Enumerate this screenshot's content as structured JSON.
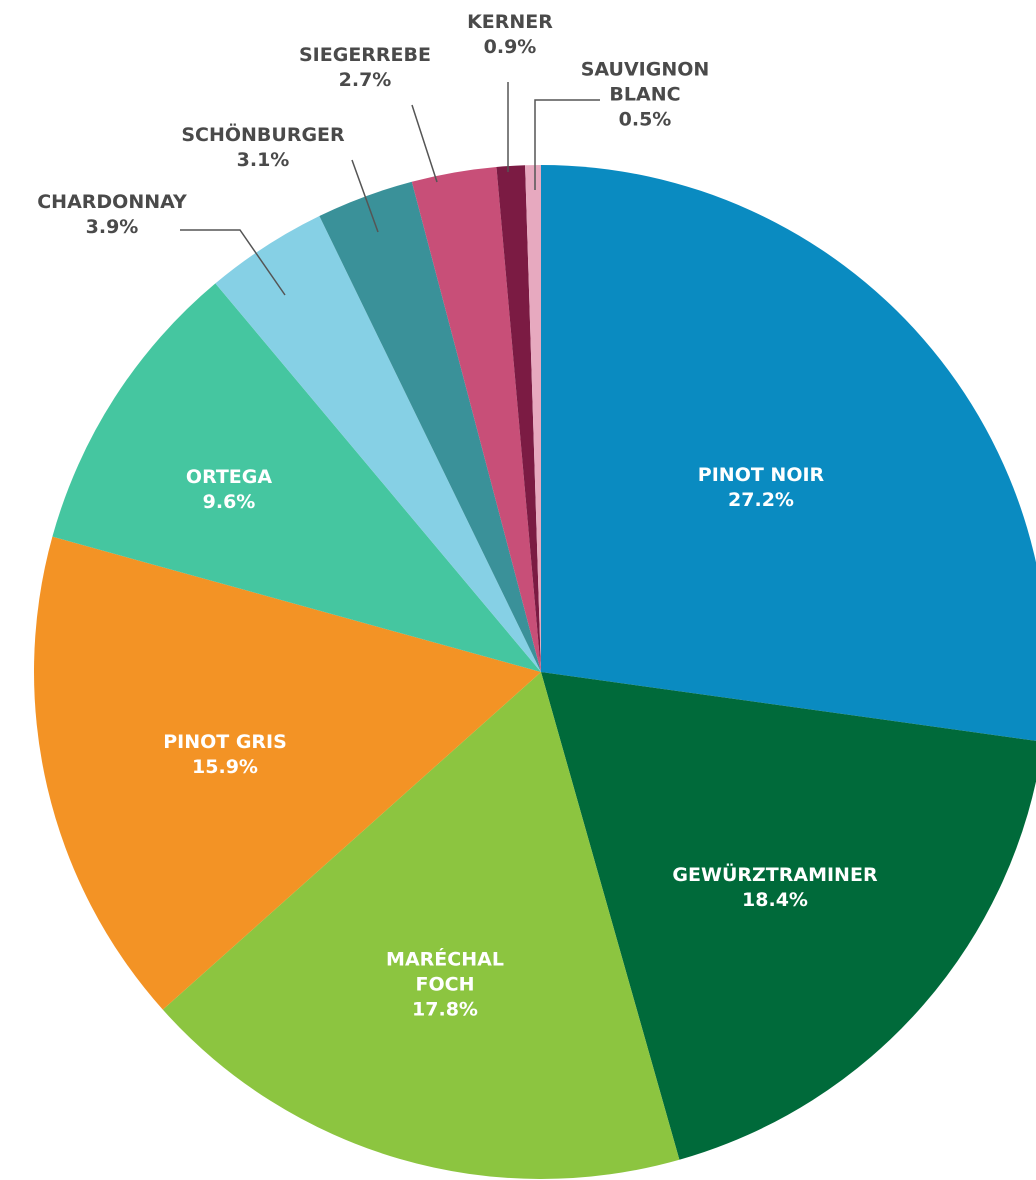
{
  "chart_data": {
    "type": "pie",
    "categories": [
      "PINOT NOIR",
      "GEWÜRZTRAMINER",
      "MARÉCHAL FOCH",
      "PINOT GRIS",
      "ORTEGA",
      "CHARDONNAY",
      "SCHÖNBURGER",
      "SIEGERREBE",
      "KERNER",
      "SAUVIGNON BLANC"
    ],
    "values": [
      27.2,
      18.4,
      17.8,
      15.9,
      9.6,
      3.9,
      3.1,
      2.7,
      0.9,
      0.5
    ],
    "value_labels": [
      "27.2%",
      "18.4%",
      "17.8%",
      "15.9%",
      "9.6%",
      "3.9%",
      "3.1%",
      "2.7%",
      "0.9%",
      "0.5%"
    ],
    "colors": [
      "#0a8bc1",
      "#006a3a",
      "#8cc540",
      "#f39325",
      "#45c6a0",
      "#86d0e5",
      "#3a9199",
      "#c84f78",
      "#7b1b43",
      "#e7a9bf"
    ]
  }
}
